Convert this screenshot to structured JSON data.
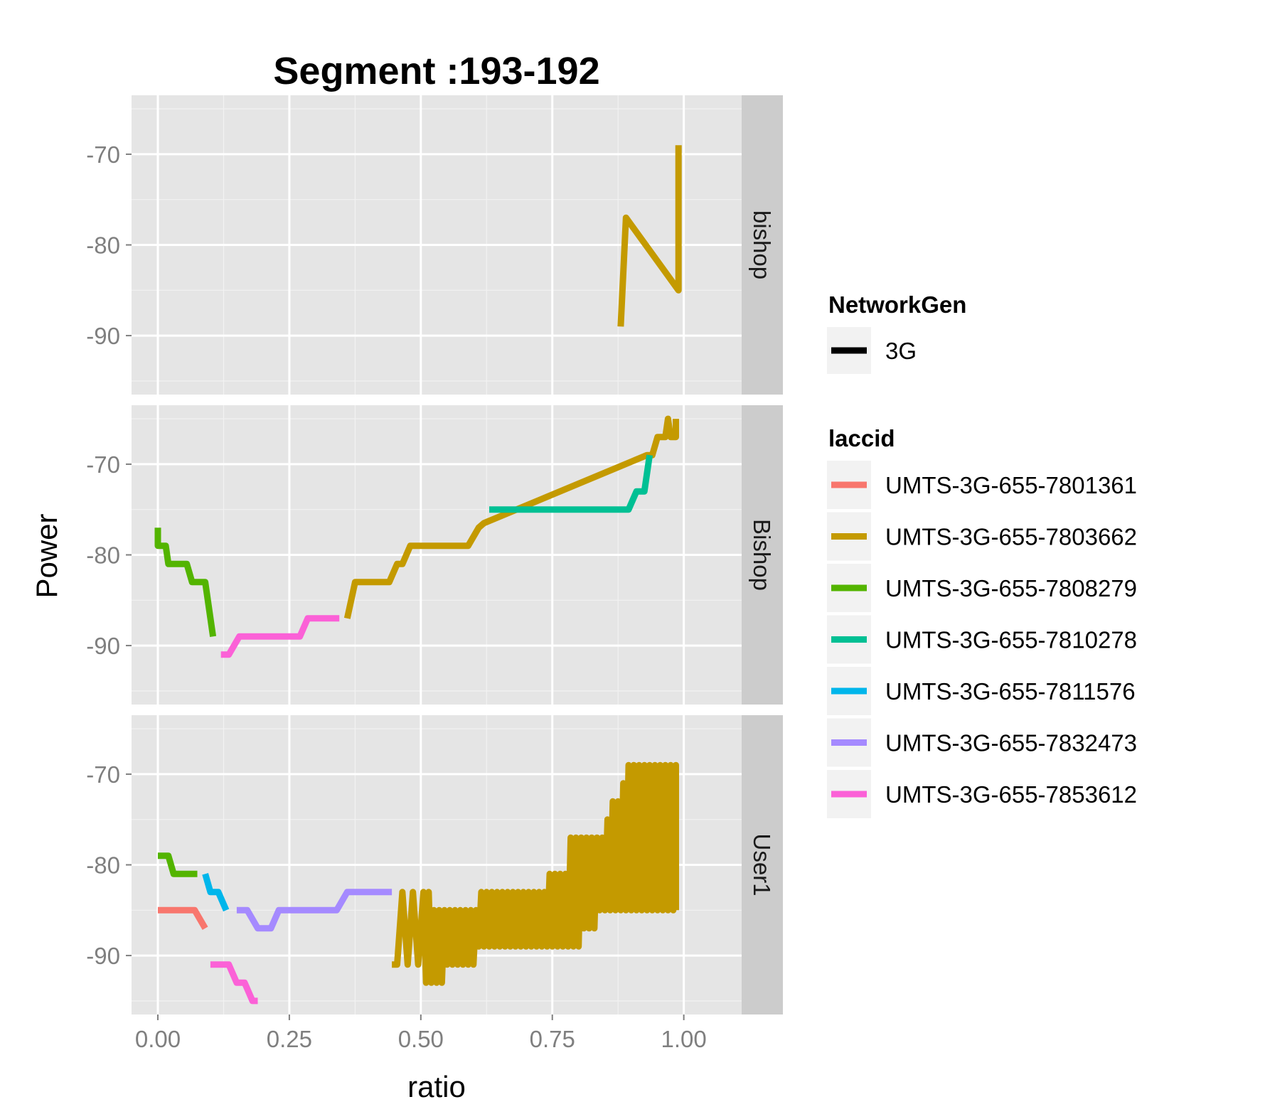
{
  "chart_data": {
    "type": "line",
    "title": "Segment :193-192",
    "xlabel": "ratio",
    "ylabel": "Power",
    "xlim": [
      -0.05,
      1.11
    ],
    "ylim": [
      -96.5,
      -63.5
    ],
    "x_ticks": [
      0,
      0.25,
      0.5,
      0.75,
      1
    ],
    "x_tick_labels": [
      "0.00",
      "0.25",
      "0.50",
      "0.75",
      "1.00"
    ],
    "y_ticks": [
      -70,
      -80,
      -90
    ],
    "y_tick_labels": [
      "-70",
      "-80",
      "-90"
    ],
    "grid": true,
    "legend_position": "right",
    "legends": [
      {
        "title": "NetworkGen",
        "entries": [
          {
            "label": "3G",
            "color": "#000000"
          }
        ]
      },
      {
        "title": "laccid",
        "entries": [
          {
            "label": "UMTS-3G-655-7801361",
            "color": "#F8766D"
          },
          {
            "label": "UMTS-3G-655-7803662",
            "color": "#C49A00"
          },
          {
            "label": "UMTS-3G-655-7808279",
            "color": "#53B400"
          },
          {
            "label": "UMTS-3G-655-7810278",
            "color": "#00C094"
          },
          {
            "label": "UMTS-3G-655-7811576",
            "color": "#00B6EB"
          },
          {
            "label": "UMTS-3G-655-7832473",
            "color": "#A58AFF"
          },
          {
            "label": "UMTS-3G-655-7853612",
            "color": "#FB61D7"
          }
        ]
      }
    ],
    "panels": [
      {
        "strip": "bishop",
        "series": [
          {
            "name": "UMTS-3G-655-7803662",
            "color": "#C49A00",
            "points": [
              [
                0.88,
                -89
              ],
              [
                0.89,
                -77
              ],
              [
                0.99,
                -85
              ],
              [
                0.99,
                -69
              ]
            ]
          }
        ]
      },
      {
        "strip": "Bishop",
        "series": [
          {
            "name": "UMTS-3G-655-7808279",
            "color": "#53B400",
            "points": [
              [
                0.0,
                -77
              ],
              [
                0.0,
                -79
              ],
              [
                0.01,
                -79
              ],
              [
                0.015,
                -79
              ],
              [
                0.02,
                -81
              ],
              [
                0.055,
                -81
              ],
              [
                0.065,
                -83
              ],
              [
                0.09,
                -83
              ],
              [
                0.105,
                -89
              ]
            ]
          },
          {
            "name": "UMTS-3G-655-7853612",
            "color": "#FB61D7",
            "points": [
              [
                0.12,
                -91
              ],
              [
                0.135,
                -91
              ],
              [
                0.155,
                -89
              ],
              [
                0.26,
                -89
              ],
              [
                0.27,
                -89
              ],
              [
                0.285,
                -87
              ],
              [
                0.345,
                -87
              ]
            ]
          },
          {
            "name": "UMTS-3G-655-7803662",
            "color": "#C49A00",
            "points": [
              [
                0.36,
                -87
              ],
              [
                0.375,
                -83
              ],
              [
                0.44,
                -83
              ],
              [
                0.455,
                -81
              ],
              [
                0.465,
                -81
              ],
              [
                0.48,
                -79
              ],
              [
                0.59,
                -79
              ],
              [
                0.61,
                -77
              ],
              [
                0.62,
                -76.5
              ],
              [
                0.93,
                -69
              ],
              [
                0.94,
                -69
              ],
              [
                0.95,
                -67
              ],
              [
                0.965,
                -67
              ],
              [
                0.97,
                -65
              ],
              [
                0.975,
                -67
              ],
              [
                0.985,
                -67
              ],
              [
                0.985,
                -65
              ]
            ]
          },
          {
            "name": "UMTS-3G-655-7810278",
            "color": "#00C094",
            "points": [
              [
                0.63,
                -75
              ],
              [
                0.895,
                -75
              ],
              [
                0.91,
                -73
              ],
              [
                0.925,
                -73
              ],
              [
                0.93,
                -71
              ],
              [
                0.935,
                -69
              ]
            ]
          }
        ]
      },
      {
        "strip": "User1",
        "series": [
          {
            "name": "UMTS-3G-655-7801361",
            "color": "#F8766D",
            "points": [
              [
                0.0,
                -85
              ],
              [
                0.07,
                -85
              ],
              [
                0.09,
                -87
              ]
            ]
          },
          {
            "name": "UMTS-3G-655-7808279",
            "color": "#53B400",
            "points": [
              [
                0.0,
                -79
              ],
              [
                0.02,
                -79
              ],
              [
                0.03,
                -81
              ],
              [
                0.075,
                -81
              ]
            ]
          },
          {
            "name": "UMTS-3G-655-7811576",
            "color": "#00B6EB",
            "points": [
              [
                0.09,
                -81
              ],
              [
                0.1,
                -83
              ],
              [
                0.115,
                -83
              ],
              [
                0.13,
                -85
              ]
            ]
          },
          {
            "name": "UMTS-3G-655-7832473",
            "color": "#A58AFF",
            "points": [
              [
                0.15,
                -85
              ],
              [
                0.17,
                -85
              ],
              [
                0.19,
                -87
              ],
              [
                0.215,
                -87
              ],
              [
                0.23,
                -85
              ],
              [
                0.34,
                -85
              ],
              [
                0.36,
                -83
              ],
              [
                0.445,
                -83
              ]
            ]
          },
          {
            "name": "UMTS-3G-655-7853612",
            "color": "#FB61D7",
            "points": [
              [
                0.1,
                -91
              ],
              [
                0.135,
                -91
              ],
              [
                0.15,
                -93
              ],
              [
                0.165,
                -93
              ],
              [
                0.18,
                -95
              ],
              [
                0.19,
                -95
              ]
            ]
          },
          {
            "name": "UMTS-3G-655-7803662",
            "color": "#C49A00",
            "points": [
              [
                0.445,
                -91
              ],
              [
                0.455,
                -91
              ],
              [
                0.465,
                -83
              ],
              [
                0.475,
                -91
              ],
              [
                0.485,
                -83
              ],
              [
                0.495,
                -91
              ],
              [
                0.505,
                -83
              ],
              [
                0.51,
                -93
              ],
              [
                0.515,
                -83
              ],
              [
                0.52,
                -93
              ],
              [
                0.525,
                -85
              ],
              [
                0.53,
                -93
              ],
              [
                0.535,
                -85
              ],
              [
                0.54,
                -93
              ],
              [
                0.545,
                -85
              ],
              [
                0.55,
                -91
              ],
              [
                0.555,
                -85
              ],
              [
                0.56,
                -91
              ],
              [
                0.565,
                -85
              ],
              [
                0.57,
                -91
              ],
              [
                0.575,
                -85
              ],
              [
                0.58,
                -91
              ],
              [
                0.585,
                -85
              ],
              [
                0.59,
                -91
              ],
              [
                0.595,
                -85
              ],
              [
                0.6,
                -91
              ],
              [
                0.605,
                -85
              ],
              [
                0.61,
                -89
              ],
              [
                0.615,
                -83
              ],
              [
                0.62,
                -89
              ],
              [
                0.625,
                -83
              ],
              [
                0.63,
                -89
              ],
              [
                0.635,
                -83
              ],
              [
                0.64,
                -89
              ],
              [
                0.645,
                -83
              ],
              [
                0.65,
                -89
              ],
              [
                0.655,
                -83
              ],
              [
                0.66,
                -89
              ],
              [
                0.665,
                -83
              ],
              [
                0.67,
                -89
              ],
              [
                0.675,
                -83
              ],
              [
                0.68,
                -89
              ],
              [
                0.685,
                -83
              ],
              [
                0.69,
                -89
              ],
              [
                0.695,
                -83
              ],
              [
                0.7,
                -89
              ],
              [
                0.705,
                -83
              ],
              [
                0.71,
                -89
              ],
              [
                0.715,
                -83
              ],
              [
                0.72,
                -89
              ],
              [
                0.725,
                -83
              ],
              [
                0.73,
                -89
              ],
              [
                0.735,
                -83
              ],
              [
                0.74,
                -89
              ],
              [
                0.745,
                -81
              ],
              [
                0.75,
                -89
              ],
              [
                0.755,
                -81
              ],
              [
                0.76,
                -89
              ],
              [
                0.765,
                -81
              ],
              [
                0.77,
                -89
              ],
              [
                0.775,
                -81
              ],
              [
                0.78,
                -89
              ],
              [
                0.785,
                -77
              ],
              [
                0.79,
                -89
              ],
              [
                0.795,
                -77
              ],
              [
                0.8,
                -89
              ],
              [
                0.805,
                -77
              ],
              [
                0.81,
                -87
              ],
              [
                0.815,
                -77
              ],
              [
                0.82,
                -87
              ],
              [
                0.825,
                -77
              ],
              [
                0.83,
                -87
              ],
              [
                0.835,
                -77
              ],
              [
                0.84,
                -85
              ],
              [
                0.845,
                -77
              ],
              [
                0.85,
                -85
              ],
              [
                0.855,
                -75
              ],
              [
                0.86,
                -85
              ],
              [
                0.865,
                -73
              ],
              [
                0.87,
                -85
              ],
              [
                0.875,
                -73
              ],
              [
                0.88,
                -85
              ],
              [
                0.885,
                -71
              ],
              [
                0.89,
                -85
              ],
              [
                0.895,
                -69
              ],
              [
                0.9,
                -85
              ],
              [
                0.905,
                -69
              ],
              [
                0.91,
                -85
              ],
              [
                0.915,
                -69
              ],
              [
                0.92,
                -85
              ],
              [
                0.925,
                -69
              ],
              [
                0.93,
                -85
              ],
              [
                0.935,
                -69
              ],
              [
                0.94,
                -85
              ],
              [
                0.945,
                -69
              ],
              [
                0.95,
                -85
              ],
              [
                0.955,
                -69
              ],
              [
                0.96,
                -85
              ],
              [
                0.965,
                -69
              ],
              [
                0.97,
                -85
              ],
              [
                0.975,
                -69
              ],
              [
                0.98,
                -85
              ],
              [
                0.985,
                -69
              ],
              [
                0.985,
                -85
              ]
            ]
          }
        ]
      }
    ]
  }
}
